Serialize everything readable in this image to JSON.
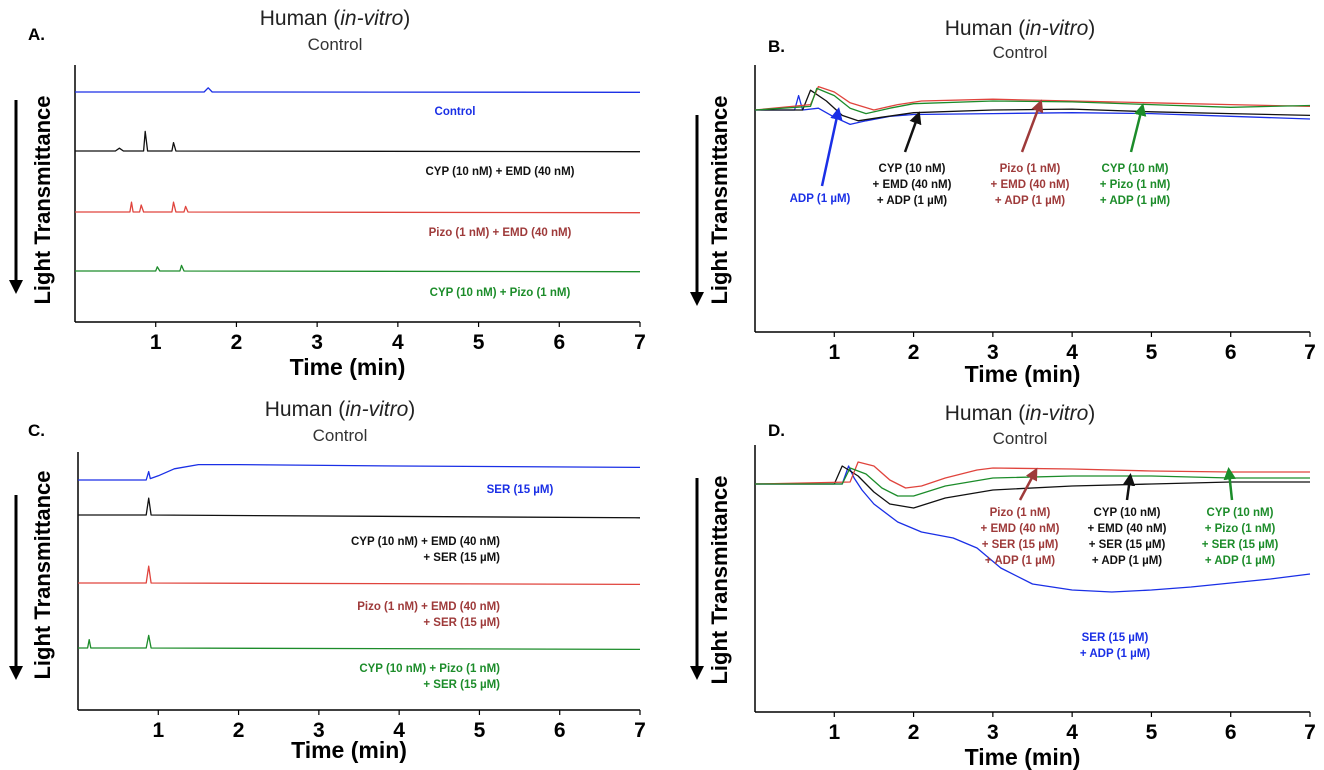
{
  "colors": {
    "blue": "#1a2fe6",
    "black": "#111111",
    "red": "#e0443d",
    "red_label": "#9e3a3a",
    "green": "#1c8c2a",
    "axis": "#000000"
  },
  "chart_data": [
    {
      "panel": "A.",
      "type": "line",
      "title": "Human (in-vitro)",
      "title_prefix": "Human (",
      "title_italic": "in-vitro",
      "title_suffix": ")",
      "subtitle": "Control",
      "xlabel": "Time (min)",
      "ylabel": "Light Transmittance",
      "xlim": [
        0,
        7
      ],
      "xticks": [
        "1",
        "2",
        "3",
        "4",
        "5",
        "6",
        "7"
      ],
      "y_direction": "down",
      "y_ticks_shown": false,
      "series": [
        {
          "name": "Control",
          "label_lines": [
            "Control"
          ],
          "color": "blue",
          "x": [
            0,
            1.6,
            1.65,
            1.7,
            7
          ],
          "y": [
            0,
            0,
            6,
            0,
            -0.5
          ]
        },
        {
          "name": "CYP (10 nM) + EMD (40 nM)",
          "label_lines": [
            "CYP (10 nM) + EMD (40 nM)"
          ],
          "color": "black",
          "x": [
            0,
            0.5,
            0.55,
            0.6,
            0.85,
            0.87,
            0.9,
            1.2,
            1.22,
            1.25,
            7
          ],
          "y": [
            0,
            0,
            4,
            0,
            0,
            28,
            0,
            0,
            12,
            0,
            -1
          ]
        },
        {
          "name": "Pizo (1 nM) + EMD (40 nM)",
          "label_lines": [
            "Pizo (1 nM) + EMD (40 nM)"
          ],
          "color": "red",
          "x": [
            0,
            0.68,
            0.7,
            0.72,
            0.8,
            0.82,
            0.85,
            1.2,
            1.22,
            1.25,
            1.35,
            1.37,
            1.4,
            7
          ],
          "y": [
            0,
            0,
            14,
            0,
            0,
            10,
            0,
            0,
            14,
            0,
            0,
            8,
            0,
            -1
          ]
        },
        {
          "name": "CYP (10 nM) + Pizo (1 nM)",
          "label_lines": [
            "CYP (10 nM) + Pizo (1 nM)"
          ],
          "color": "green",
          "x": [
            0,
            1.0,
            1.02,
            1.05,
            1.3,
            1.32,
            1.35,
            7
          ],
          "y": [
            0,
            0,
            6,
            0,
            0,
            8,
            0,
            -1
          ]
        }
      ]
    },
    {
      "panel": "B.",
      "type": "line",
      "title": "Human (in-vitro)",
      "title_prefix": "Human (",
      "title_italic": "in-vitro",
      "title_suffix": ")",
      "subtitle": "Control",
      "xlabel": "Time (min)",
      "ylabel": "Light Transmittance",
      "xlim": [
        0,
        7
      ],
      "xticks": [
        "1",
        "2",
        "3",
        "4",
        "5",
        "6",
        "7"
      ],
      "y_direction": "down",
      "y_ticks_shown": false,
      "series": [
        {
          "name": "ADP (1 µM)",
          "label_lines": [
            "ADP (1 µM)"
          ],
          "color": "blue",
          "x": [
            0,
            0.5,
            0.55,
            0.6,
            0.8,
            1.0,
            1.2,
            1.4,
            1.7,
            2.0,
            3.0,
            4.0,
            5.0,
            6.0,
            7.0
          ],
          "y": [
            0,
            0,
            16,
            0,
            2,
            -8,
            -16,
            -12,
            -7,
            -5,
            -4,
            -3,
            -4,
            -7,
            -10
          ]
        },
        {
          "name": "CYP (10 nM) + EMD (40 nM) + ADP (1 µM)",
          "label_lines": [
            "CYP (10 nM)",
            "+ EMD (40 nM)",
            "+ ADP (1 µM)"
          ],
          "color": "black",
          "x": [
            0,
            0.6,
            0.7,
            0.9,
            1.1,
            1.3,
            1.6,
            2.0,
            3.0,
            4.0,
            5.0,
            6.0,
            7.0
          ],
          "y": [
            0,
            0,
            22,
            10,
            -6,
            -12,
            -8,
            -3,
            0,
            1,
            -2,
            -4,
            -6
          ]
        },
        {
          "name": "Pizo (1 nM) + EMD (40 nM) + ADP (1 µM)",
          "label_lines": [
            "Pizo (1 nM)",
            "+ EMD (40 nM)",
            "+ ADP (1 µM)"
          ],
          "color": "red",
          "x": [
            0,
            0.7,
            0.8,
            1.0,
            1.2,
            1.5,
            1.8,
            2.1,
            3.0,
            4.0,
            5.0,
            6.0,
            7.0
          ],
          "y": [
            0,
            6,
            26,
            20,
            8,
            0,
            6,
            10,
            12,
            10,
            8,
            6,
            4
          ]
        },
        {
          "name": "CYP (10 nM) + Pizo (1 nM) + ADP (1 µM)",
          "label_lines": [
            "CYP (10 nM)",
            "+ Pizo (1 nM)",
            "+ ADP (1 µM)"
          ],
          "color": "green",
          "x": [
            0,
            0.7,
            0.78,
            1.0,
            1.2,
            1.4,
            1.7,
            2.0,
            3.0,
            4.0,
            5.0,
            6.0,
            7.0
          ],
          "y": [
            0,
            4,
            24,
            16,
            2,
            -4,
            2,
            7,
            10,
            9,
            6,
            3,
            5
          ]
        }
      ],
      "annotations": [
        "arrow"
      ]
    },
    {
      "panel": "C.",
      "type": "line",
      "title": "Human (in-vitro)",
      "title_prefix": "Human (",
      "title_italic": "in-vitro",
      "title_suffix": ")",
      "subtitle": "Control",
      "xlabel": "Time (min)",
      "ylabel": "Light Transmittance",
      "xlim": [
        0,
        7
      ],
      "xticks": [
        "1",
        "2",
        "3",
        "4",
        "5",
        "6",
        "7"
      ],
      "y_direction": "down",
      "y_ticks_shown": false,
      "series": [
        {
          "name": "SER (15 µM)",
          "label_lines": [
            "SER (15 µM)"
          ],
          "color": "blue",
          "x": [
            0,
            0.85,
            0.88,
            0.9,
            1.0,
            1.2,
            1.5,
            2.0,
            4.0,
            7.0
          ],
          "y": [
            0,
            0,
            12,
            2,
            6,
            16,
            22,
            22,
            20,
            18
          ]
        },
        {
          "name": "CYP (10 nM) + EMD (40 nM) + SER (15 µM)",
          "label_lines": [
            "CYP (10 nM) + EMD (40 nM)",
            "+ SER (15 µM)"
          ],
          "color": "black",
          "x": [
            0,
            0.85,
            0.88,
            0.91,
            7.0
          ],
          "y": [
            0,
            0,
            24,
            0,
            -4
          ]
        },
        {
          "name": "Pizo (1 nM) + EMD (40 nM) + SER (15 µM)",
          "label_lines": [
            "Pizo (1 nM) + EMD (40 nM)",
            "+ SER (15 µM)"
          ],
          "color": "red",
          "x": [
            0,
            0.85,
            0.88,
            0.91,
            7.0
          ],
          "y": [
            0,
            0,
            24,
            0,
            -2
          ]
        },
        {
          "name": "CYP (10 nM) + Pizo (1 nM) + SER (15 µM)",
          "label_lines": [
            "CYP (10 nM) + Pizo (1 nM)",
            "+ SER (15 µM)"
          ],
          "color": "green",
          "x": [
            0,
            0.12,
            0.14,
            0.16,
            0.85,
            0.88,
            0.91,
            7.0
          ],
          "y": [
            0,
            0,
            12,
            0,
            0,
            18,
            0,
            -2
          ]
        }
      ]
    },
    {
      "panel": "D.",
      "type": "line",
      "title": "Human (in-vitro)",
      "title_prefix": "Human (",
      "title_italic": "in-vitro",
      "title_suffix": ")",
      "subtitle": "Control",
      "xlabel": "Time (min)",
      "ylabel": "Light Transmittance",
      "xlim": [
        0,
        7
      ],
      "xticks": [
        "1",
        "2",
        "3",
        "4",
        "5",
        "6",
        "7"
      ],
      "y_direction": "down",
      "y_ticks_shown": false,
      "series": [
        {
          "name": "SER (15 µM) + ADP (1 µM)",
          "label_lines": [
            "SER (15 µM)",
            "+ ADP (1 µM)"
          ],
          "color": "blue",
          "x": [
            0,
            1.1,
            1.18,
            1.25,
            1.35,
            1.5,
            1.8,
            2.1,
            2.5,
            2.8,
            3.1,
            3.5,
            4.0,
            4.5,
            5.0,
            5.5,
            6.0,
            6.5,
            7.0
          ],
          "y": [
            0,
            0,
            18,
            6,
            -6,
            -20,
            -38,
            -48,
            -54,
            -64,
            -84,
            -100,
            -106,
            -108,
            -106,
            -103,
            -99,
            -95,
            -90
          ]
        },
        {
          "name": "CYP (10 nM) + EMD (40 nM) + SER (15 µM) + ADP (1 µM)",
          "label_lines": [
            "CYP (10 nM)",
            "+ EMD (40 nM)",
            "+ SER (15 µM)",
            "+ ADP (1 µM)"
          ],
          "color": "black",
          "x": [
            0,
            1.0,
            1.1,
            1.3,
            1.5,
            1.7,
            2.0,
            2.4,
            3.0,
            4.0,
            5.0,
            6.0,
            7.0
          ],
          "y": [
            0,
            0,
            18,
            8,
            -8,
            -20,
            -24,
            -14,
            -6,
            -2,
            0,
            2,
            2
          ]
        },
        {
          "name": "Pizo (1 nM) + EMD (40 nM) + SER (15 µM) + ADP (1 µM)",
          "label_lines": [
            "Pizo (1 nM)",
            "+ EMD (40 nM)",
            "+ SER (15 µM)",
            "+ ADP (1 µM)"
          ],
          "color": "red",
          "x": [
            0,
            1.2,
            1.3,
            1.5,
            1.7,
            1.9,
            2.1,
            2.4,
            2.8,
            3.0,
            4.0,
            5.0,
            6.0,
            7.0
          ],
          "y": [
            0,
            2,
            22,
            18,
            4,
            -4,
            -2,
            6,
            14,
            16,
            15,
            13,
            12,
            12
          ]
        },
        {
          "name": "CYP (10 nM) + Pizo (1 nM) + SER (15 µM) + ADP (1 µM)",
          "label_lines": [
            "CYP (10 nM)",
            "+ Pizo (1 nM)",
            "+ SER (15 µM)",
            "+ ADP (1 µM)"
          ],
          "color": "green",
          "x": [
            0,
            1.1,
            1.2,
            1.4,
            1.6,
            1.8,
            2.0,
            2.4,
            3.0,
            4.0,
            5.0,
            6.0,
            7.0
          ],
          "y": [
            0,
            0,
            16,
            10,
            -4,
            -12,
            -12,
            -2,
            6,
            8,
            8,
            6,
            6
          ]
        }
      ],
      "annotations": [
        "arrow"
      ]
    }
  ]
}
